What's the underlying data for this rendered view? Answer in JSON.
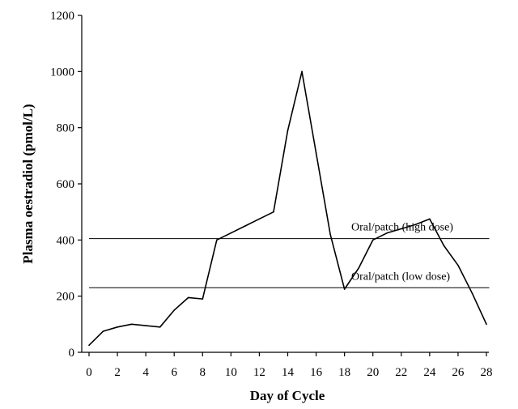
{
  "chart_data": {
    "type": "line",
    "title": "",
    "xlabel": "Day of Cycle",
    "ylabel": "Plasma oestradiol (pmol/L)",
    "xlim": [
      0,
      28
    ],
    "ylim": [
      0,
      1200
    ],
    "xticks": [
      0,
      2,
      4,
      6,
      8,
      10,
      12,
      14,
      16,
      18,
      20,
      22,
      24,
      26,
      28
    ],
    "yticks": [
      0,
      200,
      400,
      600,
      800,
      1000,
      1200
    ],
    "grid": false,
    "series": [
      {
        "name": "Plasma oestradiol",
        "x": [
          0,
          1,
          2,
          3,
          4,
          5,
          6,
          7,
          8,
          9,
          10,
          11,
          12,
          13,
          14,
          15,
          16,
          17,
          18,
          19,
          20,
          21,
          22,
          23,
          24,
          25,
          26,
          27,
          28
        ],
        "y": [
          25,
          75,
          90,
          100,
          95,
          90,
          150,
          195,
          190,
          400,
          425,
          450,
          475,
          500,
          790,
          1000,
          710,
          420,
          225,
          300,
          400,
          425,
          440,
          455,
          475,
          380,
          310,
          210,
          100
        ]
      }
    ],
    "reference_lines": [
      {
        "label": "Oral/patch (high dose)",
        "y": 405,
        "x_start": 0,
        "x_end": 28.2
      },
      {
        "label": "Oral/patch (low dose)",
        "y": 230,
        "x_start": 0,
        "x_end": 28.2
      }
    ]
  }
}
